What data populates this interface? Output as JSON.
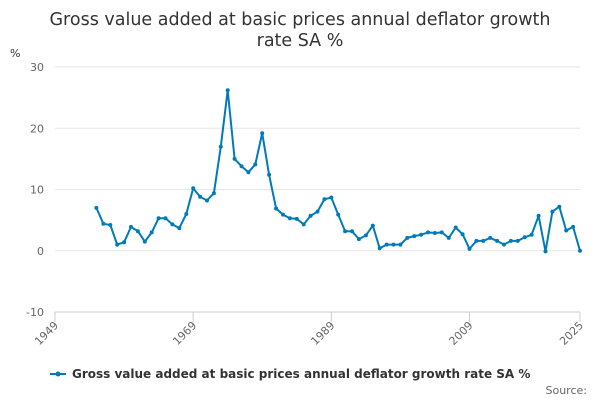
{
  "chart_data": {
    "type": "line",
    "title_lines": [
      "Gross value added at basic prices annual deflator growth",
      "rate SA %"
    ],
    "ylabel": "%",
    "xlabel": "",
    "ylim": [
      -10,
      30
    ],
    "yticks": [
      -10,
      0,
      10,
      20,
      30
    ],
    "xlim": [
      1949,
      2025
    ],
    "xticks": [
      1949,
      1969,
      1989,
      2009,
      2025
    ],
    "grid": true,
    "legend_position": "bottom",
    "series_color": "#007bb8",
    "series": [
      {
        "name": "Gross value added at basic prices annual deflator growth rate SA %",
        "x": [
          1955,
          1956,
          1957,
          1958,
          1959,
          1960,
          1961,
          1962,
          1963,
          1964,
          1965,
          1966,
          1967,
          1968,
          1969,
          1970,
          1971,
          1972,
          1973,
          1974,
          1975,
          1976,
          1977,
          1978,
          1979,
          1980,
          1981,
          1982,
          1983,
          1984,
          1985,
          1986,
          1987,
          1988,
          1989,
          1990,
          1991,
          1992,
          1993,
          1994,
          1995,
          1996,
          1997,
          1998,
          1999,
          2000,
          2001,
          2002,
          2003,
          2004,
          2005,
          2006,
          2007,
          2008,
          2009,
          2010,
          2011,
          2012,
          2013,
          2014,
          2015,
          2016,
          2017,
          2018,
          2019,
          2020,
          2021,
          2022,
          2023,
          2024,
          2025
        ],
        "values": [
          7.0,
          4.4,
          4.2,
          1.0,
          1.4,
          3.9,
          3.2,
          1.5,
          3.0,
          5.3,
          5.3,
          4.3,
          3.7,
          6.0,
          10.2,
          8.8,
          8.2,
          9.4,
          17.0,
          26.2,
          15.0,
          13.8,
          12.8,
          14.1,
          19.2,
          12.4,
          6.9,
          5.9,
          5.3,
          5.2,
          4.3,
          5.7,
          6.4,
          8.4,
          8.7,
          5.9,
          3.2,
          3.2,
          1.9,
          2.5,
          4.1,
          0.4,
          1.0,
          1.0,
          1.0,
          2.1,
          2.4,
          2.6,
          3.0,
          2.9,
          3.0,
          2.1,
          3.8,
          2.7,
          0.3,
          1.6,
          1.6,
          2.1,
          1.6,
          1.0,
          1.6,
          1.6,
          2.2,
          2.6,
          5.7,
          -0.1,
          6.4,
          7.2,
          3.3,
          3.9,
          0
        ]
      }
    ],
    "source_label": "Source:"
  }
}
